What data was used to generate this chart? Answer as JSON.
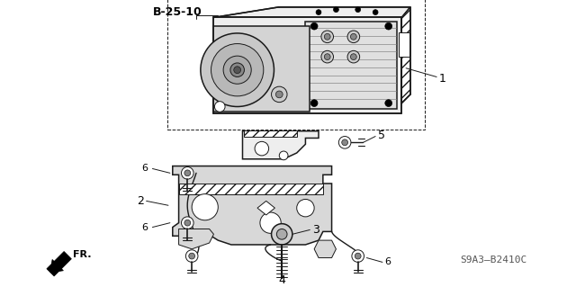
{
  "bg_color": "#ffffff",
  "title_code": "B-25-10",
  "part_ref": "S9A3—B2410C",
  "line_color": "#1a1a1a",
  "gray_fill": "#d8d8d8",
  "light_gray": "#eeeeee",
  "dark_gray": "#888888",
  "figsize": [
    6.4,
    3.19
  ],
  "dpi": 100
}
